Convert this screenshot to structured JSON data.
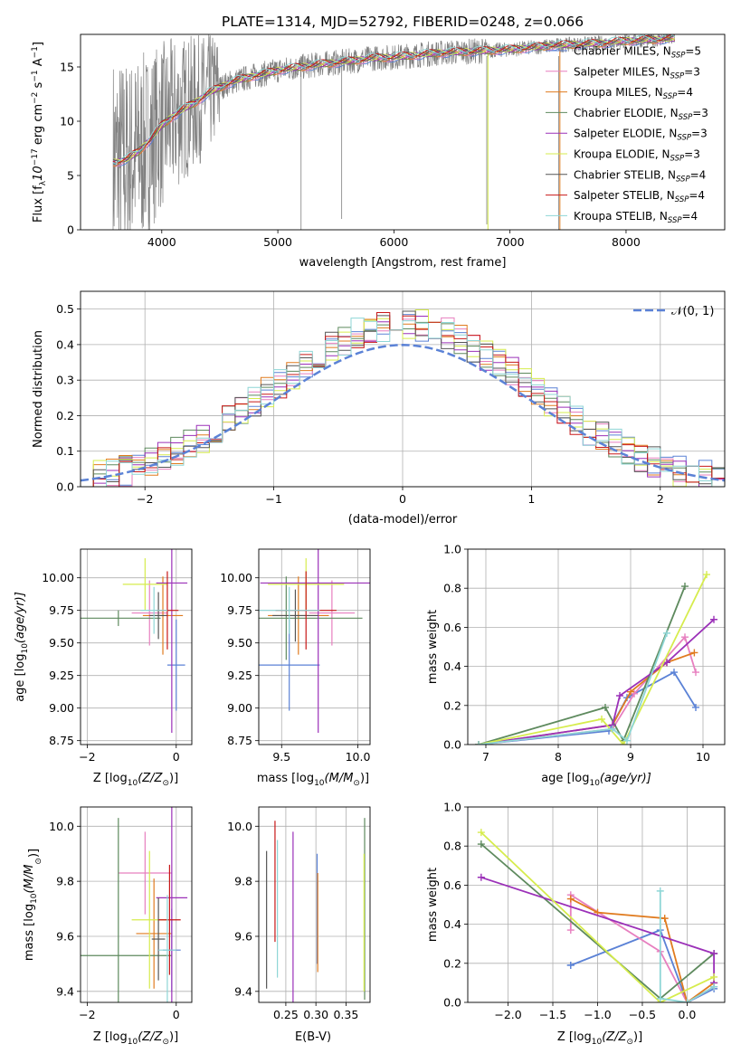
{
  "figure": {
    "title": "PLATE=1314, MJD=52792, FIBERID=0248, z=0.066"
  },
  "legend_series": [
    {
      "name": "Chabrier MILES, N",
      "sub": "SSP",
      "suffix": "=5",
      "color": "#5b82d6"
    },
    {
      "name": "Salpeter MILES, N",
      "sub": "SSP",
      "suffix": "=3",
      "color": "#e77fbf"
    },
    {
      "name": "Kroupa MILES, N",
      "sub": "SSP",
      "suffix": "=4",
      "color": "#e07b1f"
    },
    {
      "name": "Chabrier ELODIE, N",
      "sub": "SSP",
      "suffix": "=3",
      "color": "#5e8a5e"
    },
    {
      "name": "Salpeter ELODIE, N",
      "sub": "SSP",
      "suffix": "=3",
      "color": "#9b30b8"
    },
    {
      "name": "Kroupa ELODIE, N",
      "sub": "SSP",
      "suffix": "=3",
      "color": "#d6ec4d"
    },
    {
      "name": "Chabrier STELIB, N",
      "sub": "SSP",
      "suffix": "=4",
      "color": "#555555"
    },
    {
      "name": "Salpeter STELIB, N",
      "sub": "SSP",
      "suffix": "=4",
      "color": "#c81818"
    },
    {
      "name": "Kroupa STELIB, N",
      "sub": "SSP",
      "suffix": "=4",
      "color": "#8ed6d6"
    }
  ],
  "chart_data": [
    {
      "id": "spectrum",
      "type": "line",
      "xlabel": "wavelength [Angstrom, rest frame]",
      "ylabel": "Flux [f",
      "ylabel_sub": "λ",
      "ylabel_rest": "10",
      "ylabel_sup": "−17",
      "ylabel_tail": " erg cm",
      "ylabel_sup2": "−2",
      "ylabel_tail2": " s",
      "ylabel_sup3": "−1",
      "ylabel_tail3": " A",
      "ylabel_sup4": "−1",
      "ylabel_end": "]",
      "xlim": [
        3300,
        8850
      ],
      "ylim": [
        0,
        18
      ],
      "xticks": [
        4000,
        5000,
        6000,
        7000,
        8000
      ],
      "yticks": [
        0,
        5,
        10,
        15
      ],
      "observed_color": "#808080",
      "model_x": [
        3600,
        3700,
        3800,
        3900,
        4000,
        4100,
        4200,
        4300,
        4400,
        4500,
        4600,
        4700,
        4800,
        4900,
        5000,
        5200,
        5400,
        5600,
        5800,
        6000,
        6200,
        6400,
        6600,
        6800,
        7000,
        7200,
        7400,
        7600,
        7800,
        8000,
        8200,
        8400
      ],
      "model_y": [
        6.2,
        6.5,
        7.2,
        8.3,
        9.6,
        10.5,
        11.2,
        11.8,
        12.6,
        13.1,
        13.6,
        13.9,
        14.2,
        14.4,
        14.7,
        15.0,
        15.3,
        15.5,
        15.8,
        15.9,
        16.1,
        16.3,
        16.4,
        16.5,
        16.6,
        16.8,
        17.0,
        17.1,
        17.2,
        17.4,
        17.5,
        17.6
      ]
    },
    {
      "id": "residuals",
      "type": "line",
      "xlabel": "(data-model)/error",
      "ylabel": "Normed distribution",
      "xlim": [
        -2.5,
        2.5
      ],
      "ylim": [
        0,
        0.55
      ],
      "xticks": [
        -2,
        -1,
        0,
        1,
        2
      ],
      "yticks": [
        0.0,
        0.1,
        0.2,
        0.3,
        0.4,
        0.5
      ],
      "gaussian_label": "𝒩(0, 1)",
      "gaussian_color": "#5b82d6"
    },
    {
      "id": "age-vs-Z",
      "type": "scatter",
      "xlabel": "Z [log",
      "xlabel_sub": "10",
      "xlabel_rest": "(Z/Z",
      "xlabel_sun": "⊙",
      "xlabel_end": ")]",
      "ylabel": "age  [log",
      "ylabel_sub": "10",
      "ylabel_rest": "(age/yr)]",
      "xlim": [
        -2.15,
        0.35
      ],
      "ylim": [
        8.72,
        10.22
      ],
      "xticks": [
        -2,
        0
      ],
      "yticks": [
        8.75,
        9.0,
        9.25,
        9.5,
        9.75,
        10.0
      ],
      "points": [
        {
          "x": -0.0,
          "y": 9.33,
          "xerr": 0.2,
          "yerr": 0.35,
          "color": "#5b82d6"
        },
        {
          "x": -0.6,
          "y": 9.73,
          "xerr": 0.4,
          "yerr": 0.25,
          "color": "#e77fbf"
        },
        {
          "x": -0.3,
          "y": 9.71,
          "xerr": 0.45,
          "yerr": 0.3,
          "color": "#e07b1f"
        },
        {
          "x": -1.3,
          "y": 9.69,
          "xerr": 0.95,
          "yerr": 0.06,
          "color": "#5e8a5e"
        },
        {
          "x": -0.1,
          "y": 9.96,
          "xerr": 0.35,
          "yerr": 1.15,
          "color": "#9b30b8"
        },
        {
          "x": -0.7,
          "y": 9.95,
          "xerr": 0.5,
          "yerr": 0.2,
          "color": "#d6ec4d"
        },
        {
          "x": -0.4,
          "y": 9.71,
          "xerr": 0.2,
          "yerr": 0.18,
          "color": "#555555"
        },
        {
          "x": -0.2,
          "y": 9.75,
          "xerr": 0.25,
          "yerr": 0.3,
          "color": "#c81818"
        },
        {
          "x": -0.5,
          "y": 9.75,
          "xerr": 0.3,
          "yerr": 0.18,
          "color": "#8ed6d6"
        }
      ]
    },
    {
      "id": "age-vs-mass",
      "type": "scatter",
      "xlabel": "mass [log",
      "xlabel_sub": "10",
      "xlabel_rest": "(M/M",
      "xlabel_sun": "⊙",
      "xlabel_end": ")]",
      "ylabel": "",
      "xlim": [
        9.35,
        10.08
      ],
      "ylim": [
        8.72,
        10.22
      ],
      "xticks": [
        9.5,
        10.0
      ],
      "yticks": [
        8.75,
        9.0,
        9.25,
        9.5,
        9.75,
        10.0
      ],
      "points": [
        {
          "x": 9.55,
          "y": 9.33,
          "xerr": 0.2,
          "yerr": 0.35,
          "color": "#5b82d6"
        },
        {
          "x": 9.83,
          "y": 9.73,
          "xerr": 0.15,
          "yerr": 0.25,
          "color": "#e77fbf"
        },
        {
          "x": 9.61,
          "y": 9.71,
          "xerr": 0.2,
          "yerr": 0.3,
          "color": "#e07b1f"
        },
        {
          "x": 9.53,
          "y": 9.69,
          "xerr": 0.5,
          "yerr": 0.32,
          "color": "#5e8a5e"
        },
        {
          "x": 9.74,
          "y": 9.96,
          "xerr": 0.38,
          "yerr": 1.15,
          "color": "#9b30b8"
        },
        {
          "x": 9.66,
          "y": 9.95,
          "xerr": 0.25,
          "yerr": 0.2,
          "color": "#d6ec4d"
        },
        {
          "x": 9.59,
          "y": 9.71,
          "xerr": 0.15,
          "yerr": 0.2,
          "color": "#555555"
        },
        {
          "x": 9.66,
          "y": 9.75,
          "xerr": 0.2,
          "yerr": 0.3,
          "color": "#c81818"
        },
        {
          "x": 9.55,
          "y": 9.75,
          "xerr": 0.2,
          "yerr": 0.18,
          "color": "#8ed6d6"
        }
      ]
    },
    {
      "id": "weight-vs-age",
      "type": "line",
      "xlabel": "age  [log",
      "xlabel_sub": "10",
      "xlabel_rest": "(age/yr)]",
      "ylabel": "mass weight",
      "xlim": [
        6.75,
        10.3
      ],
      "ylim": [
        0,
        1
      ],
      "xticks": [
        7,
        8,
        9,
        10
      ],
      "yticks": [
        0.0,
        0.2,
        0.4,
        0.6,
        0.8,
        1.0
      ],
      "series": [
        {
          "color": "#5b82d6",
          "x": [
            6.9,
            8.7,
            8.95,
            9.6,
            9.9
          ],
          "y": [
            0.0,
            0.07,
            0.24,
            0.37,
            0.19
          ]
        },
        {
          "color": "#e77fbf",
          "x": [
            6.9,
            8.75,
            9.05,
            9.75,
            9.9
          ],
          "y": [
            0.0,
            0.08,
            0.26,
            0.55,
            0.37
          ]
        },
        {
          "color": "#e07b1f",
          "x": [
            6.9,
            8.75,
            9.0,
            9.5,
            9.88
          ],
          "y": [
            0.0,
            0.1,
            0.27,
            0.42,
            0.47
          ]
        },
        {
          "color": "#5e8a5e",
          "x": [
            6.9,
            8.65,
            8.9,
            9.75
          ],
          "y": [
            0.0,
            0.19,
            0.02,
            0.81
          ]
        },
        {
          "color": "#9b30b8",
          "x": [
            6.9,
            8.75,
            8.85,
            9.5,
            10.15
          ],
          "y": [
            0.0,
            0.1,
            0.25,
            0.42,
            0.64
          ]
        },
        {
          "color": "#d6ec4d",
          "x": [
            6.9,
            8.6,
            8.9,
            10.05
          ],
          "y": [
            0.0,
            0.13,
            0.0,
            0.87
          ]
        },
        {
          "color": "#8ed6d6",
          "x": [
            6.9,
            8.75,
            8.95,
            9.5
          ],
          "y": [
            0.0,
            0.08,
            0.02,
            0.57
          ]
        }
      ]
    },
    {
      "id": "mass-vs-Z",
      "type": "scatter",
      "xlabel": "Z [log",
      "xlabel_sub": "10",
      "xlabel_rest": "(Z/Z",
      "xlabel_sun": "⊙",
      "xlabel_end": ")]",
      "ylabel": "mass [log",
      "ylabel_sub": "10",
      "ylabel_rest": "(M/M",
      "ylabel_sun": "⊙",
      "ylabel_end": ")]",
      "xlim": [
        -2.15,
        0.35
      ],
      "ylim": [
        9.36,
        10.07
      ],
      "xticks": [
        -2,
        0
      ],
      "yticks": [
        9.4,
        9.6,
        9.8,
        10.0
      ],
      "points": [
        {
          "x": -0.1,
          "y": 9.55,
          "xerr": 0.2,
          "yerr": 0.15,
          "color": "#5b82d6"
        },
        {
          "x": -0.7,
          "y": 9.83,
          "xerr": 0.6,
          "yerr": 0.15,
          "color": "#e77fbf"
        },
        {
          "x": -0.5,
          "y": 9.61,
          "xerr": 0.4,
          "yerr": 0.2,
          "color": "#e07b1f"
        },
        {
          "x": -1.3,
          "y": 9.53,
          "xerr": 1.2,
          "yerr": 0.5,
          "color": "#5e8a5e"
        },
        {
          "x": -0.1,
          "y": 9.74,
          "xerr": 0.35,
          "yerr": 0.38,
          "color": "#9b30b8"
        },
        {
          "x": -0.6,
          "y": 9.66,
          "xerr": 0.4,
          "yerr": 0.25,
          "color": "#d6ec4d"
        },
        {
          "x": -0.4,
          "y": 9.59,
          "xerr": 0.15,
          "yerr": 0.15,
          "color": "#555555"
        },
        {
          "x": -0.15,
          "y": 9.66,
          "xerr": 0.25,
          "yerr": 0.2,
          "color": "#c81818"
        },
        {
          "x": -0.2,
          "y": 9.55,
          "xerr": 0.2,
          "yerr": 0.2,
          "color": "#8ed6d6"
        }
      ]
    },
    {
      "id": "mass-vs-EBV",
      "type": "scatter",
      "xlabel": "E(B-V)",
      "ylabel": "",
      "xlim": [
        0.205,
        0.39
      ],
      "ylim": [
        9.36,
        10.07
      ],
      "xticks": [
        0.25,
        0.3,
        0.35
      ],
      "yticks": [
        9.4,
        9.6,
        9.8,
        10.0
      ],
      "points": [
        {
          "x": 0.302,
          "y": 9.7,
          "yerr": 0.2,
          "color": "#5b82d6"
        },
        {
          "x": 0.303,
          "y": 9.65,
          "yerr": 0.18,
          "color": "#e07b1f"
        },
        {
          "x": 0.381,
          "y": 9.7,
          "yerr": 0.33,
          "color": "#5e8a5e"
        },
        {
          "x": 0.262,
          "y": 9.67,
          "yerr": 0.31,
          "color": "#9b30b8"
        },
        {
          "x": 0.38,
          "y": 9.65,
          "yerr": 0.25,
          "color": "#d6ec4d"
        },
        {
          "x": 0.218,
          "y": 9.66,
          "yerr": 0.25,
          "color": "#555555"
        },
        {
          "x": 0.232,
          "y": 9.8,
          "yerr": 0.22,
          "color": "#c81818"
        },
        {
          "x": 0.236,
          "y": 9.7,
          "yerr": 0.25,
          "color": "#8ed6d6"
        }
      ]
    },
    {
      "id": "weight-vs-Z",
      "type": "line",
      "xlabel": "Z [log",
      "xlabel_sub": "10",
      "xlabel_rest": "(Z/Z",
      "xlabel_sun": "⊙",
      "xlabel_end": ")]",
      "ylabel": "mass weight",
      "xlim": [
        -2.45,
        0.42
      ],
      "ylim": [
        0,
        1
      ],
      "xticks": [
        -2.0,
        -1.5,
        -1.0,
        -0.5,
        0.0
      ],
      "yticks": [
        0.0,
        0.2,
        0.4,
        0.6,
        0.8,
        1.0
      ],
      "series": [
        {
          "color": "#5b82d6",
          "x": [
            -1.3,
            -1.3,
            -0.3,
            0.0,
            0.3
          ],
          "y": [
            0.19,
            0.19,
            0.37,
            0.0,
            0.07
          ]
        },
        {
          "color": "#e77fbf",
          "x": [
            -1.3,
            -1.3,
            -0.3,
            0.0,
            0.3
          ],
          "y": [
            0.37,
            0.55,
            0.26,
            0.0,
            0.08
          ]
        },
        {
          "color": "#e07b1f",
          "x": [
            -1.3,
            -1.0,
            -0.25,
            0.0,
            0.3
          ],
          "y": [
            0.53,
            0.46,
            0.43,
            0.0,
            0.1
          ]
        },
        {
          "color": "#5e8a5e",
          "x": [
            -2.3,
            -0.3,
            0.3
          ],
          "y": [
            0.81,
            0.02,
            0.25
          ]
        },
        {
          "color": "#9b30b8",
          "x": [
            -2.3,
            0.3,
            0.3
          ],
          "y": [
            0.64,
            0.25,
            0.1
          ]
        },
        {
          "color": "#d6ec4d",
          "x": [
            -2.3,
            -0.3,
            0.3
          ],
          "y": [
            0.87,
            0.0,
            0.13
          ]
        },
        {
          "color": "#8ed6d6",
          "x": [
            -0.3,
            -0.3,
            0.0,
            0.3
          ],
          "y": [
            0.57,
            0.02,
            0.0,
            0.08
          ]
        }
      ]
    }
  ]
}
